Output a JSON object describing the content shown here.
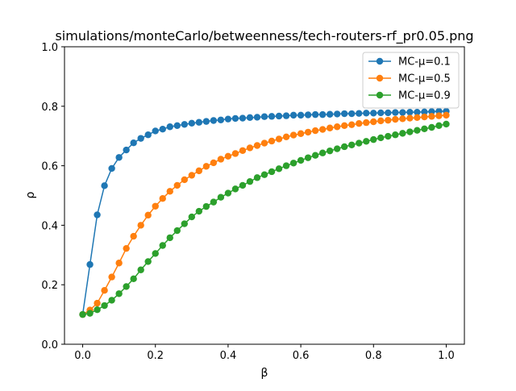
{
  "chart_data": {
    "type": "line",
    "title": "simulations/monteCarlo/betweenness/tech-routers-rf_pr0.05.png",
    "xlabel": "β",
    "ylabel": "ρ",
    "xlim": [
      -0.05,
      1.05
    ],
    "ylim": [
      0.0,
      1.0
    ],
    "xticks": [
      0.0,
      0.2,
      0.4,
      0.6,
      0.8,
      1.0
    ],
    "yticks": [
      0.0,
      0.2,
      0.4,
      0.6,
      0.8,
      1.0
    ],
    "xtick_labels": [
      "0.0",
      "0.2",
      "0.4",
      "0.6",
      "0.8",
      "1.0"
    ],
    "ytick_labels": [
      "0.0",
      "0.2",
      "0.4",
      "0.6",
      "0.8",
      "1.0"
    ],
    "grid": false,
    "legend_position": "top-right",
    "x": [
      0.0,
      0.02,
      0.04,
      0.06,
      0.08,
      0.1,
      0.12,
      0.14,
      0.16,
      0.18,
      0.2,
      0.22,
      0.24,
      0.26,
      0.28,
      0.3,
      0.32,
      0.34,
      0.36,
      0.38,
      0.4,
      0.42,
      0.44,
      0.46,
      0.48,
      0.5,
      0.52,
      0.54,
      0.56,
      0.58,
      0.6,
      0.62,
      0.64,
      0.66,
      0.68,
      0.7,
      0.72,
      0.74,
      0.76,
      0.78,
      0.8,
      0.82,
      0.84,
      0.86,
      0.88,
      0.9,
      0.92,
      0.94,
      0.96,
      0.98,
      1.0
    ],
    "series": [
      {
        "name": "MC-μ=0.1",
        "color": "#1f77b4",
        "values": [
          0.1,
          0.268,
          0.435,
          0.533,
          0.591,
          0.628,
          0.653,
          0.677,
          0.692,
          0.704,
          0.717,
          0.723,
          0.731,
          0.735,
          0.739,
          0.743,
          0.746,
          0.749,
          0.752,
          0.754,
          0.757,
          0.759,
          0.76,
          0.762,
          0.763,
          0.765,
          0.766,
          0.767,
          0.768,
          0.77,
          0.77,
          0.771,
          0.772,
          0.772,
          0.773,
          0.774,
          0.775,
          0.775,
          0.776,
          0.777,
          0.777,
          0.778,
          0.778,
          0.779,
          0.779,
          0.78,
          0.78,
          0.781,
          0.782,
          0.783,
          0.783
        ]
      },
      {
        "name": "MC-μ=0.5",
        "color": "#ff7f0e",
        "values": [
          0.1,
          0.115,
          0.138,
          0.181,
          0.226,
          0.273,
          0.322,
          0.363,
          0.4,
          0.434,
          0.464,
          0.49,
          0.514,
          0.534,
          0.553,
          0.568,
          0.583,
          0.598,
          0.61,
          0.622,
          0.632,
          0.641,
          0.651,
          0.66,
          0.668,
          0.676,
          0.683,
          0.69,
          0.697,
          0.703,
          0.708,
          0.713,
          0.718,
          0.722,
          0.727,
          0.731,
          0.735,
          0.738,
          0.742,
          0.745,
          0.748,
          0.751,
          0.753,
          0.756,
          0.758,
          0.76,
          0.762,
          0.764,
          0.766,
          0.768,
          0.77
        ]
      },
      {
        "name": "MC-μ=0.9",
        "color": "#2ca02c",
        "values": [
          0.1,
          0.104,
          0.116,
          0.13,
          0.148,
          0.17,
          0.194,
          0.22,
          0.25,
          0.278,
          0.305,
          0.332,
          0.358,
          0.382,
          0.405,
          0.428,
          0.447,
          0.463,
          0.478,
          0.494,
          0.508,
          0.522,
          0.534,
          0.547,
          0.56,
          0.57,
          0.58,
          0.59,
          0.6,
          0.609,
          0.618,
          0.627,
          0.635,
          0.643,
          0.65,
          0.657,
          0.664,
          0.67,
          0.676,
          0.682,
          0.688,
          0.694,
          0.699,
          0.704,
          0.709,
          0.714,
          0.719,
          0.724,
          0.729,
          0.735,
          0.74
        ]
      }
    ]
  }
}
